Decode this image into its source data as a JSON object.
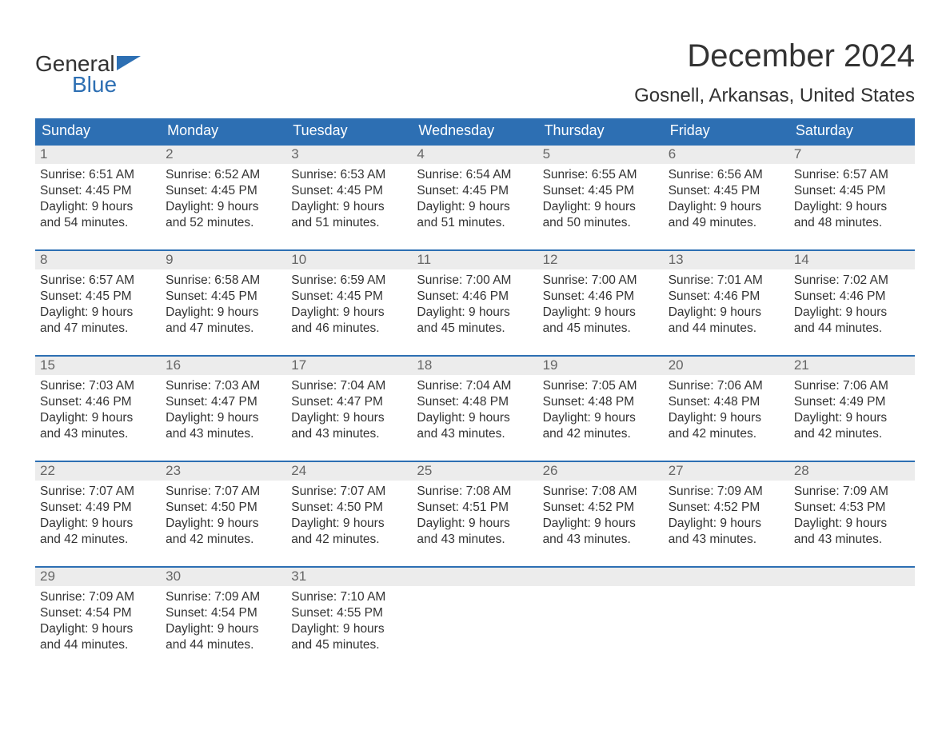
{
  "brand": {
    "word1": "General",
    "word2": "Blue"
  },
  "title": "December 2024",
  "location": "Gosnell, Arkansas, United States",
  "colors": {
    "primary": "#2d6fb3",
    "daynum_bg": "#ececec",
    "text": "#333333",
    "subtext": "#666666",
    "background": "#ffffff"
  },
  "fonts": {
    "title_size": 40,
    "location_size": 24,
    "dayname_size": 18,
    "body_size": 15.5
  },
  "daynames": [
    "Sunday",
    "Monday",
    "Tuesday",
    "Wednesday",
    "Thursday",
    "Friday",
    "Saturday"
  ],
  "weeks": [
    [
      {
        "n": "1",
        "sunrise": "Sunrise: 6:51 AM",
        "sunset": "Sunset: 4:45 PM",
        "d1": "Daylight: 9 hours",
        "d2": "and 54 minutes."
      },
      {
        "n": "2",
        "sunrise": "Sunrise: 6:52 AM",
        "sunset": "Sunset: 4:45 PM",
        "d1": "Daylight: 9 hours",
        "d2": "and 52 minutes."
      },
      {
        "n": "3",
        "sunrise": "Sunrise: 6:53 AM",
        "sunset": "Sunset: 4:45 PM",
        "d1": "Daylight: 9 hours",
        "d2": "and 51 minutes."
      },
      {
        "n": "4",
        "sunrise": "Sunrise: 6:54 AM",
        "sunset": "Sunset: 4:45 PM",
        "d1": "Daylight: 9 hours",
        "d2": "and 51 minutes."
      },
      {
        "n": "5",
        "sunrise": "Sunrise: 6:55 AM",
        "sunset": "Sunset: 4:45 PM",
        "d1": "Daylight: 9 hours",
        "d2": "and 50 minutes."
      },
      {
        "n": "6",
        "sunrise": "Sunrise: 6:56 AM",
        "sunset": "Sunset: 4:45 PM",
        "d1": "Daylight: 9 hours",
        "d2": "and 49 minutes."
      },
      {
        "n": "7",
        "sunrise": "Sunrise: 6:57 AM",
        "sunset": "Sunset: 4:45 PM",
        "d1": "Daylight: 9 hours",
        "d2": "and 48 minutes."
      }
    ],
    [
      {
        "n": "8",
        "sunrise": "Sunrise: 6:57 AM",
        "sunset": "Sunset: 4:45 PM",
        "d1": "Daylight: 9 hours",
        "d2": "and 47 minutes."
      },
      {
        "n": "9",
        "sunrise": "Sunrise: 6:58 AM",
        "sunset": "Sunset: 4:45 PM",
        "d1": "Daylight: 9 hours",
        "d2": "and 47 minutes."
      },
      {
        "n": "10",
        "sunrise": "Sunrise: 6:59 AM",
        "sunset": "Sunset: 4:45 PM",
        "d1": "Daylight: 9 hours",
        "d2": "and 46 minutes."
      },
      {
        "n": "11",
        "sunrise": "Sunrise: 7:00 AM",
        "sunset": "Sunset: 4:46 PM",
        "d1": "Daylight: 9 hours",
        "d2": "and 45 minutes."
      },
      {
        "n": "12",
        "sunrise": "Sunrise: 7:00 AM",
        "sunset": "Sunset: 4:46 PM",
        "d1": "Daylight: 9 hours",
        "d2": "and 45 minutes."
      },
      {
        "n": "13",
        "sunrise": "Sunrise: 7:01 AM",
        "sunset": "Sunset: 4:46 PM",
        "d1": "Daylight: 9 hours",
        "d2": "and 44 minutes."
      },
      {
        "n": "14",
        "sunrise": "Sunrise: 7:02 AM",
        "sunset": "Sunset: 4:46 PM",
        "d1": "Daylight: 9 hours",
        "d2": "and 44 minutes."
      }
    ],
    [
      {
        "n": "15",
        "sunrise": "Sunrise: 7:03 AM",
        "sunset": "Sunset: 4:46 PM",
        "d1": "Daylight: 9 hours",
        "d2": "and 43 minutes."
      },
      {
        "n": "16",
        "sunrise": "Sunrise: 7:03 AM",
        "sunset": "Sunset: 4:47 PM",
        "d1": "Daylight: 9 hours",
        "d2": "and 43 minutes."
      },
      {
        "n": "17",
        "sunrise": "Sunrise: 7:04 AM",
        "sunset": "Sunset: 4:47 PM",
        "d1": "Daylight: 9 hours",
        "d2": "and 43 minutes."
      },
      {
        "n": "18",
        "sunrise": "Sunrise: 7:04 AM",
        "sunset": "Sunset: 4:48 PM",
        "d1": "Daylight: 9 hours",
        "d2": "and 43 minutes."
      },
      {
        "n": "19",
        "sunrise": "Sunrise: 7:05 AM",
        "sunset": "Sunset: 4:48 PM",
        "d1": "Daylight: 9 hours",
        "d2": "and 42 minutes."
      },
      {
        "n": "20",
        "sunrise": "Sunrise: 7:06 AM",
        "sunset": "Sunset: 4:48 PM",
        "d1": "Daylight: 9 hours",
        "d2": "and 42 minutes."
      },
      {
        "n": "21",
        "sunrise": "Sunrise: 7:06 AM",
        "sunset": "Sunset: 4:49 PM",
        "d1": "Daylight: 9 hours",
        "d2": "and 42 minutes."
      }
    ],
    [
      {
        "n": "22",
        "sunrise": "Sunrise: 7:07 AM",
        "sunset": "Sunset: 4:49 PM",
        "d1": "Daylight: 9 hours",
        "d2": "and 42 minutes."
      },
      {
        "n": "23",
        "sunrise": "Sunrise: 7:07 AM",
        "sunset": "Sunset: 4:50 PM",
        "d1": "Daylight: 9 hours",
        "d2": "and 42 minutes."
      },
      {
        "n": "24",
        "sunrise": "Sunrise: 7:07 AM",
        "sunset": "Sunset: 4:50 PM",
        "d1": "Daylight: 9 hours",
        "d2": "and 42 minutes."
      },
      {
        "n": "25",
        "sunrise": "Sunrise: 7:08 AM",
        "sunset": "Sunset: 4:51 PM",
        "d1": "Daylight: 9 hours",
        "d2": "and 43 minutes."
      },
      {
        "n": "26",
        "sunrise": "Sunrise: 7:08 AM",
        "sunset": "Sunset: 4:52 PM",
        "d1": "Daylight: 9 hours",
        "d2": "and 43 minutes."
      },
      {
        "n": "27",
        "sunrise": "Sunrise: 7:09 AM",
        "sunset": "Sunset: 4:52 PM",
        "d1": "Daylight: 9 hours",
        "d2": "and 43 minutes."
      },
      {
        "n": "28",
        "sunrise": "Sunrise: 7:09 AM",
        "sunset": "Sunset: 4:53 PM",
        "d1": "Daylight: 9 hours",
        "d2": "and 43 minutes."
      }
    ],
    [
      {
        "n": "29",
        "sunrise": "Sunrise: 7:09 AM",
        "sunset": "Sunset: 4:54 PM",
        "d1": "Daylight: 9 hours",
        "d2": "and 44 minutes."
      },
      {
        "n": "30",
        "sunrise": "Sunrise: 7:09 AM",
        "sunset": "Sunset: 4:54 PM",
        "d1": "Daylight: 9 hours",
        "d2": "and 44 minutes."
      },
      {
        "n": "31",
        "sunrise": "Sunrise: 7:10 AM",
        "sunset": "Sunset: 4:55 PM",
        "d1": "Daylight: 9 hours",
        "d2": "and 45 minutes."
      },
      null,
      null,
      null,
      null
    ]
  ]
}
